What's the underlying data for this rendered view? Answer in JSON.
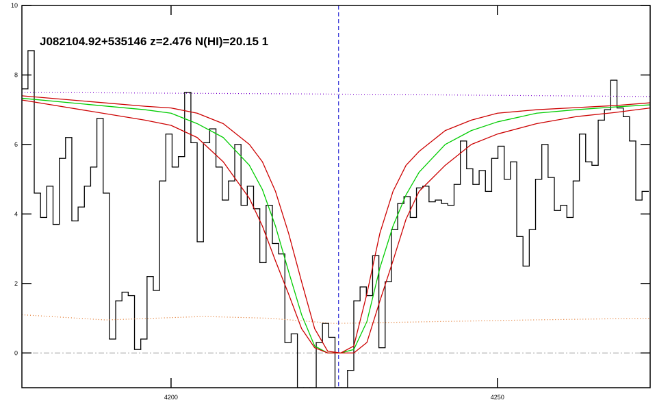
{
  "chart_data": {
    "type": "line",
    "title": "J082104.92+535146 z=2.476 N(HI)=20.15 1",
    "xlim": [
      4177.15,
      4273.4
    ],
    "ylim": [
      -1,
      10
    ],
    "xticks": [
      4200,
      4250
    ],
    "yticks": [
      0,
      2,
      4,
      6,
      8,
      10
    ],
    "vline": {
      "x": 4225.67,
      "color": "#0000cc",
      "style": "dashed"
    },
    "hline": {
      "y": 0,
      "color": "#999999",
      "style": "dashdot"
    },
    "series": [
      {
        "color": "#000000",
        "drawstyle": "steps-mid",
        "x": [
          4177.6,
          4178.56,
          4179.52,
          4180.48,
          4181.44,
          4182.4,
          4183.36,
          4184.32,
          4185.28,
          4186.24,
          4187.2,
          4188.16,
          4189.12,
          4190.08,
          4191.04,
          4192,
          4192.96,
          4193.92,
          4194.88,
          4195.84,
          4196.8,
          4197.76,
          4198.72,
          4199.68,
          4200.64,
          4201.6,
          4202.56,
          4203.52,
          4204.48,
          4205.44,
          4206.4,
          4207.36,
          4208.32,
          4209.28,
          4210.24,
          4211.2,
          4212.16,
          4213.12,
          4214.08,
          4215.04,
          4216,
          4216.96,
          4217.92,
          4218.88,
          4219.84,
          4220.8,
          4221.76,
          4222.72,
          4223.68,
          4224.64,
          4225.6,
          4226.56,
          4227.52,
          4228.48,
          4229.44,
          4230.4,
          4231.36,
          4232.32,
          4233.28,
          4234.24,
          4235.2,
          4236.16,
          4237.12,
          4238.08,
          4239.04,
          4240,
          4240.96,
          4241.92,
          4242.88,
          4243.84,
          4244.8,
          4245.76,
          4246.72,
          4247.68,
          4248.64,
          4249.6,
          4250.56,
          4251.52,
          4252.48,
          4253.44,
          4254.4,
          4255.36,
          4256.32,
          4257.28,
          4258.24,
          4259.2,
          4260.16,
          4261.12,
          4262.08,
          4263.04,
          4264,
          4264.96,
          4265.92,
          4266.88,
          4267.84,
          4268.8,
          4269.76,
          4270.72,
          4271.68,
          4272.64
        ],
        "values": [
          7.6,
          8.7,
          4.6,
          3.9,
          4.8,
          3.7,
          5.6,
          6.2,
          3.8,
          4.2,
          4.8,
          5.35,
          6.75,
          4.6,
          0.4,
          1.5,
          1.75,
          1.65,
          0.1,
          0.4,
          2.2,
          1.8,
          4.95,
          6.3,
          5.35,
          5.65,
          7.5,
          6.05,
          3.2,
          6.05,
          6.45,
          5.35,
          4.4,
          4.95,
          6.0,
          4.25,
          4.8,
          4.15,
          2.6,
          4.25,
          3.15,
          2.85,
          0.3,
          0.55,
          -1.0,
          -1.0,
          -1.0,
          0.3,
          0.85,
          0.45,
          -1.0,
          -1.0,
          -0.5,
          1.5,
          1.9,
          1.65,
          2.8,
          0.15,
          2.05,
          3.55,
          4.3,
          4.5,
          3.9,
          4.75,
          4.8,
          4.35,
          4.4,
          4.3,
          4.25,
          4.85,
          6.1,
          5.3,
          4.85,
          5.25,
          4.65,
          5.6,
          5.95,
          5.0,
          5.5,
          3.35,
          2.5,
          3.55,
          5.0,
          6.0,
          5.05,
          4.1,
          4.25,
          3.9,
          4.95,
          6.3,
          5.5,
          5.4,
          6.7,
          7.0,
          7.85,
          7.05,
          6.8,
          6.1,
          4.4,
          4.65
        ]
      },
      {
        "color": "#00cc00",
        "drawstyle": "line",
        "x": [
          4177.15,
          4196,
          4200,
          4204,
          4208,
          4212,
          4214,
          4216,
          4218,
          4220,
          4222,
          4224,
          4226,
          4228,
          4230,
          4232,
          4234,
          4236,
          4238,
          4242,
          4246,
          4250,
          4256,
          4262,
          4268,
          4273.4
        ],
        "values": [
          7.33,
          7.0,
          6.9,
          6.6,
          6.2,
          5.4,
          4.7,
          3.65,
          2.35,
          1.1,
          0.2,
          0.0,
          0.0,
          0.1,
          0.9,
          2.45,
          3.65,
          4.55,
          5.2,
          6.0,
          6.4,
          6.65,
          6.9,
          7.0,
          7.08,
          7.14
        ]
      },
      {
        "color": "#cc0000",
        "drawstyle": "line",
        "x": [
          4177.15,
          4196,
          4200,
          4204,
          4208,
          4212,
          4214,
          4216,
          4218,
          4220,
          4222,
          4224,
          4226,
          4228,
          4230,
          4232,
          4234,
          4236,
          4238,
          4242,
          4246,
          4250,
          4256,
          4262,
          4268,
          4273.4
        ],
        "values": [
          7.4,
          7.1,
          7.05,
          6.9,
          6.6,
          6.0,
          5.5,
          4.65,
          3.45,
          2.05,
          0.7,
          0.05,
          0.0,
          0.2,
          1.7,
          3.45,
          4.65,
          5.4,
          5.8,
          6.4,
          6.7,
          6.9,
          7.0,
          7.06,
          7.12,
          7.2
        ]
      },
      {
        "color": "#cc0000",
        "drawstyle": "line",
        "x": [
          4177.15,
          4196,
          4200,
          4204,
          4208,
          4212,
          4214,
          4216,
          4218,
          4220,
          4222,
          4224,
          4226,
          4228,
          4230,
          4232,
          4234,
          4236,
          4238,
          4242,
          4246,
          4250,
          4256,
          4262,
          4268,
          4273.4
        ],
        "values": [
          7.28,
          6.7,
          6.55,
          6.2,
          5.5,
          4.45,
          3.65,
          2.65,
          1.7,
          0.7,
          0.15,
          0.0,
          0.0,
          0.0,
          0.3,
          1.5,
          2.65,
          3.85,
          4.65,
          5.4,
          6.0,
          6.3,
          6.6,
          6.8,
          6.92,
          7.05
        ]
      },
      {
        "color": "#7a00cc",
        "drawstyle": "dotted",
        "x": [
          4177.15,
          4225,
          4273.4
        ],
        "values": [
          7.5,
          7.45,
          7.38
        ]
      },
      {
        "color": "#e07020",
        "drawstyle": "dotted",
        "x": [
          4177.15,
          4190,
          4205,
          4215,
          4225,
          4240,
          4255,
          4273.4
        ],
        "values": [
          1.1,
          0.95,
          1.05,
          1.0,
          0.85,
          0.9,
          0.95,
          1.0
        ]
      }
    ]
  }
}
